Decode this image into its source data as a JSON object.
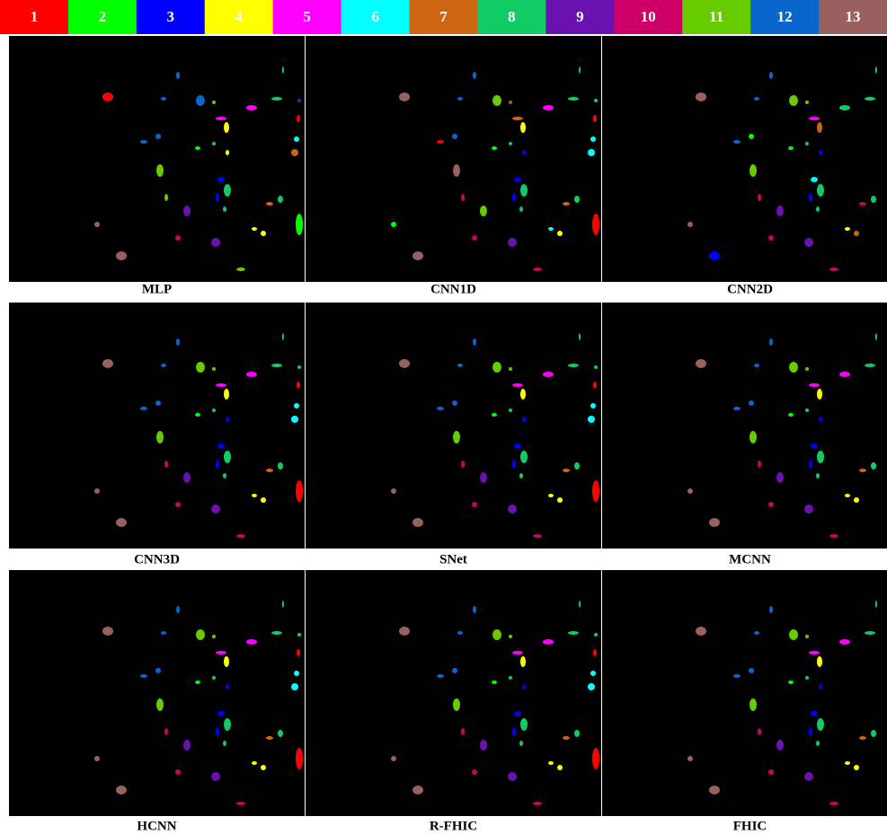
{
  "legend": [
    {
      "label": "1",
      "color": "#ff0000"
    },
    {
      "label": "2",
      "color": "#00ff00"
    },
    {
      "label": "3",
      "color": "#0000ff"
    },
    {
      "label": "4",
      "color": "#ffff00"
    },
    {
      "label": "5",
      "color": "#ff00ff"
    },
    {
      "label": "6",
      "color": "#00ffff"
    },
    {
      "label": "7",
      "color": "#cc6611"
    },
    {
      "label": "8",
      "color": "#11cc66"
    },
    {
      "label": "9",
      "color": "#6a12b0"
    },
    {
      "label": "10",
      "color": "#cc0066"
    },
    {
      "label": "11",
      "color": "#66cc00"
    },
    {
      "label": "12",
      "color": "#0a66cc"
    },
    {
      "label": "13",
      "color": "#996060"
    }
  ],
  "panels": [
    {
      "caption": "MLP"
    },
    {
      "caption": "CNN1D"
    },
    {
      "caption": "CNN2D"
    },
    {
      "caption": "CNN3D"
    },
    {
      "caption": "SNet"
    },
    {
      "caption": "MCNN"
    },
    {
      "caption": "HCNN"
    },
    {
      "caption": "R-FHIC"
    },
    {
      "caption": "FHIC"
    }
  ]
}
